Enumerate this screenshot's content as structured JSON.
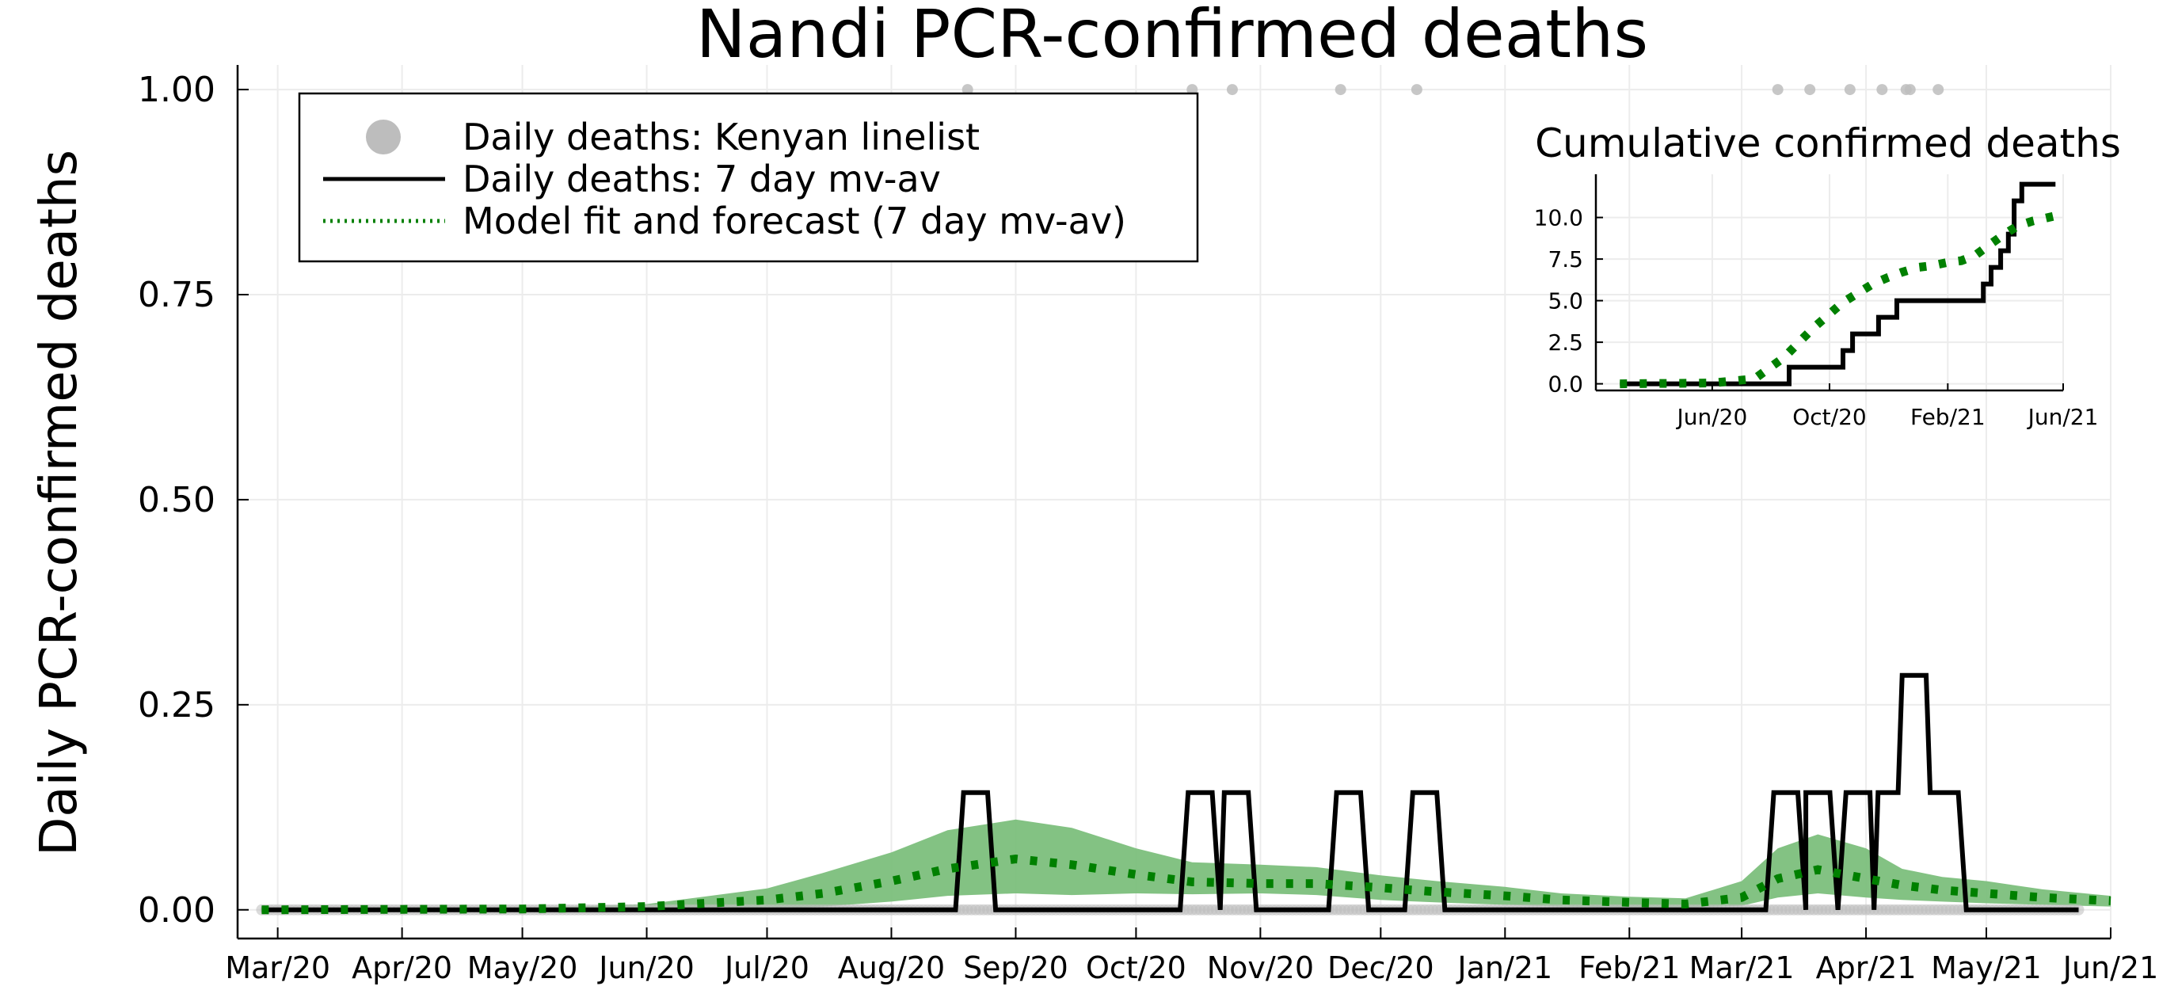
{
  "chart_data": [
    {
      "type": "line",
      "title": "Nandi PCR-confirmed deaths",
      "xlabel": "",
      "ylabel": "Daily PCR-confirmed deaths",
      "x_tick_labels": [
        "Mar/20",
        "Apr/20",
        "May/20",
        "Jun/20",
        "Jul/20",
        "Aug/20",
        "Sep/20",
        "Oct/20",
        "Nov/20",
        "Dec/20",
        "Jan/21",
        "Feb/21",
        "Mar/21",
        "Apr/21",
        "May/21",
        "Jun/21"
      ],
      "x_ticks": [
        "2020-03-01",
        "2020-04-01",
        "2020-05-01",
        "2020-06-01",
        "2020-07-01",
        "2020-08-01",
        "2020-09-01",
        "2020-10-01",
        "2020-11-01",
        "2020-12-01",
        "2021-01-01",
        "2021-02-01",
        "2021-03-01",
        "2021-04-01",
        "2021-05-01",
        "2021-06-01"
      ],
      "y_tick_labels": [
        "0.00",
        "0.25",
        "0.50",
        "0.75",
        "1.00"
      ],
      "y_ticks": [
        0,
        0.25,
        0.5,
        0.75,
        1.0
      ],
      "xlim": [
        "2020-02-20",
        "2021-06-01"
      ],
      "ylim": [
        -0.035,
        1.03
      ],
      "grid": true,
      "legend_position": "top-left",
      "series": [
        {
          "name": "Daily deaths: Kenyan linelist",
          "kind": "scatter",
          "color": "#bdbdbd",
          "x_range": [
            "2020-02-26",
            "2021-05-24"
          ],
          "baseline_value": 0,
          "one_death_dates": [
            "2020-08-20",
            "2020-10-15",
            "2020-10-25",
            "2020-11-21",
            "2020-12-10",
            "2021-03-10",
            "2021-03-18",
            "2021-03-28",
            "2021-04-05",
            "2021-04-11",
            "2021-04-12",
            "2021-04-19"
          ]
        },
        {
          "name": "Daily deaths: 7 day mv-av",
          "kind": "line",
          "color": "#000000",
          "points": [
            [
              "2020-02-26",
              0
            ],
            [
              "2020-08-17",
              0
            ],
            [
              "2020-08-19",
              0.142857
            ],
            [
              "2020-08-25",
              0.142857
            ],
            [
              "2020-08-27",
              0
            ],
            [
              "2020-10-12",
              0
            ],
            [
              "2020-10-14",
              0.142857
            ],
            [
              "2020-10-20",
              0.142857
            ],
            [
              "2020-10-22",
              0
            ],
            [
              "2020-10-23",
              0.142857
            ],
            [
              "2020-10-29",
              0.142857
            ],
            [
              "2020-10-31",
              0
            ],
            [
              "2020-11-18",
              0
            ],
            [
              "2020-11-20",
              0.142857
            ],
            [
              "2020-11-26",
              0.142857
            ],
            [
              "2020-11-28",
              0
            ],
            [
              "2020-12-07",
              0
            ],
            [
              "2020-12-09",
              0.142857
            ],
            [
              "2020-12-15",
              0.142857
            ],
            [
              "2020-12-17",
              0
            ],
            [
              "2021-03-07",
              0
            ],
            [
              "2021-03-09",
              0.142857
            ],
            [
              "2021-03-15",
              0.142857
            ],
            [
              "2021-03-17",
              0
            ],
            [
              "2021-03-17",
              0.142857
            ],
            [
              "2021-03-23",
              0.142857
            ],
            [
              "2021-03-25",
              0
            ],
            [
              "2021-03-27",
              0.142857
            ],
            [
              "2021-04-02",
              0.142857
            ],
            [
              "2021-04-03",
              0
            ],
            [
              "2021-04-04",
              0.142857
            ],
            [
              "2021-04-09",
              0.142857
            ],
            [
              "2021-04-10",
              0.285714
            ],
            [
              "2021-04-16",
              0.285714
            ],
            [
              "2021-04-17",
              0.142857
            ],
            [
              "2021-04-24",
              0.142857
            ],
            [
              "2021-04-26",
              0
            ],
            [
              "2021-05-24",
              0
            ]
          ]
        },
        {
          "name": "Model fit and forecast (7 day mv-av)",
          "kind": "dotted-line",
          "color": "#008000",
          "band_color": "#7cbf7c",
          "points": [
            [
              "2020-02-26",
              0
            ],
            [
              "2020-05-01",
              0.001
            ],
            [
              "2020-06-01",
              0.004
            ],
            [
              "2020-07-01",
              0.012
            ],
            [
              "2020-07-15",
              0.02
            ],
            [
              "2020-08-01",
              0.035
            ],
            [
              "2020-08-15",
              0.05
            ],
            [
              "2020-09-01",
              0.062
            ],
            [
              "2020-09-15",
              0.055
            ],
            [
              "2020-10-01",
              0.043
            ],
            [
              "2020-10-15",
              0.034
            ],
            [
              "2020-11-01",
              0.032
            ],
            [
              "2020-11-15",
              0.032
            ],
            [
              "2020-12-01",
              0.027
            ],
            [
              "2020-12-15",
              0.022
            ],
            [
              "2021-01-01",
              0.017
            ],
            [
              "2021-01-15",
              0.012
            ],
            [
              "2021-02-01",
              0.009
            ],
            [
              "2021-02-15",
              0.007
            ],
            [
              "2021-03-01",
              0.015
            ],
            [
              "2021-03-10",
              0.038
            ],
            [
              "2021-03-20",
              0.049
            ],
            [
              "2021-04-01",
              0.038
            ],
            [
              "2021-04-10",
              0.03
            ],
            [
              "2021-04-20",
              0.024
            ],
            [
              "2021-05-01",
              0.02
            ],
            [
              "2021-05-15",
              0.015
            ],
            [
              "2021-06-01",
              0.011
            ]
          ],
          "band": [
            [
              "2020-02-26",
              0,
              0
            ],
            [
              "2020-05-01",
              0,
              0.002
            ],
            [
              "2020-06-01",
              0,
              0.007
            ],
            [
              "2020-07-01",
              0.001,
              0.026
            ],
            [
              "2020-07-15",
              0.004,
              0.045
            ],
            [
              "2020-08-01",
              0.01,
              0.07
            ],
            [
              "2020-08-15",
              0.017,
              0.097
            ],
            [
              "2020-09-01",
              0.02,
              0.11
            ],
            [
              "2020-09-15",
              0.018,
              0.1
            ],
            [
              "2020-10-01",
              0.02,
              0.075
            ],
            [
              "2020-10-15",
              0.019,
              0.058
            ],
            [
              "2020-11-01",
              0.02,
              0.055
            ],
            [
              "2020-11-15",
              0.018,
              0.052
            ],
            [
              "2020-12-01",
              0.012,
              0.042
            ],
            [
              "2020-12-15",
              0.009,
              0.035
            ],
            [
              "2021-01-01",
              0.006,
              0.028
            ],
            [
              "2021-01-15",
              0.004,
              0.02
            ],
            [
              "2021-02-01",
              0.003,
              0.016
            ],
            [
              "2021-02-15",
              0.003,
              0.014
            ],
            [
              "2021-03-01",
              0.005,
              0.035
            ],
            [
              "2021-03-10",
              0.015,
              0.075
            ],
            [
              "2021-03-20",
              0.02,
              0.092
            ],
            [
              "2021-04-01",
              0.015,
              0.075
            ],
            [
              "2021-04-10",
              0.012,
              0.05
            ],
            [
              "2021-04-20",
              0.01,
              0.04
            ],
            [
              "2021-05-01",
              0.008,
              0.035
            ],
            [
              "2021-05-15",
              0.006,
              0.025
            ],
            [
              "2021-06-01",
              0.004,
              0.017
            ]
          ]
        }
      ]
    },
    {
      "type": "line",
      "title": "Cumulative confirmed deaths",
      "x_tick_labels": [
        "Jun/20",
        "Oct/20",
        "Feb/21",
        "Jun/21"
      ],
      "x_ticks": [
        "2020-06-01",
        "2020-10-01",
        "2021-02-01",
        "2021-06-01"
      ],
      "y_tick_labels": [
        "0.0",
        "2.5",
        "5.0",
        "7.5",
        "10.0"
      ],
      "y_ticks": [
        0,
        2.5,
        5,
        7.5,
        10
      ],
      "xlim": [
        "2020-02-01",
        "2021-06-01"
      ],
      "ylim": [
        -0.4,
        12.6
      ],
      "grid": true,
      "series": [
        {
          "name": "",
          "kind": "line",
          "color": "#000000",
          "points": [
            [
              "2020-02-26",
              0
            ],
            [
              "2020-08-20",
              0
            ],
            [
              "2020-08-20",
              1
            ],
            [
              "2020-10-15",
              1
            ],
            [
              "2020-10-15",
              2
            ],
            [
              "2020-10-25",
              2
            ],
            [
              "2020-10-25",
              3
            ],
            [
              "2020-11-21",
              3
            ],
            [
              "2020-11-21",
              4
            ],
            [
              "2020-12-10",
              4
            ],
            [
              "2020-12-10",
              5
            ],
            [
              "2021-03-10",
              5
            ],
            [
              "2021-03-10",
              6
            ],
            [
              "2021-03-18",
              6
            ],
            [
              "2021-03-18",
              7
            ],
            [
              "2021-03-28",
              7
            ],
            [
              "2021-03-28",
              8
            ],
            [
              "2021-04-05",
              8
            ],
            [
              "2021-04-05",
              9
            ],
            [
              "2021-04-11",
              9
            ],
            [
              "2021-04-11",
              11
            ],
            [
              "2021-04-19",
              11
            ],
            [
              "2021-04-19",
              12
            ],
            [
              "2021-05-24",
              12
            ]
          ]
        },
        {
          "name": "",
          "kind": "dotted-line",
          "color": "#008000",
          "points": [
            [
              "2020-02-26",
              0
            ],
            [
              "2020-06-01",
              0.05
            ],
            [
              "2020-07-15",
              0.3
            ],
            [
              "2020-08-15",
              1.6
            ],
            [
              "2020-09-01",
              2.6
            ],
            [
              "2020-09-15",
              3.4
            ],
            [
              "2020-10-01",
              4.2
            ],
            [
              "2020-10-15",
              4.9
            ],
            [
              "2020-11-01",
              5.5
            ],
            [
              "2020-11-15",
              6.0
            ],
            [
              "2020-12-01",
              6.4
            ],
            [
              "2020-12-15",
              6.7
            ],
            [
              "2021-01-01",
              7.0
            ],
            [
              "2021-01-15",
              7.1
            ],
            [
              "2021-02-01",
              7.3
            ],
            [
              "2021-02-15",
              7.4
            ],
            [
              "2021-03-01",
              7.7
            ],
            [
              "2021-03-15",
              8.3
            ],
            [
              "2021-04-01",
              9.0
            ],
            [
              "2021-04-15",
              9.5
            ],
            [
              "2021-05-01",
              9.8
            ],
            [
              "2021-05-24",
              10.1
            ]
          ]
        }
      ]
    }
  ]
}
